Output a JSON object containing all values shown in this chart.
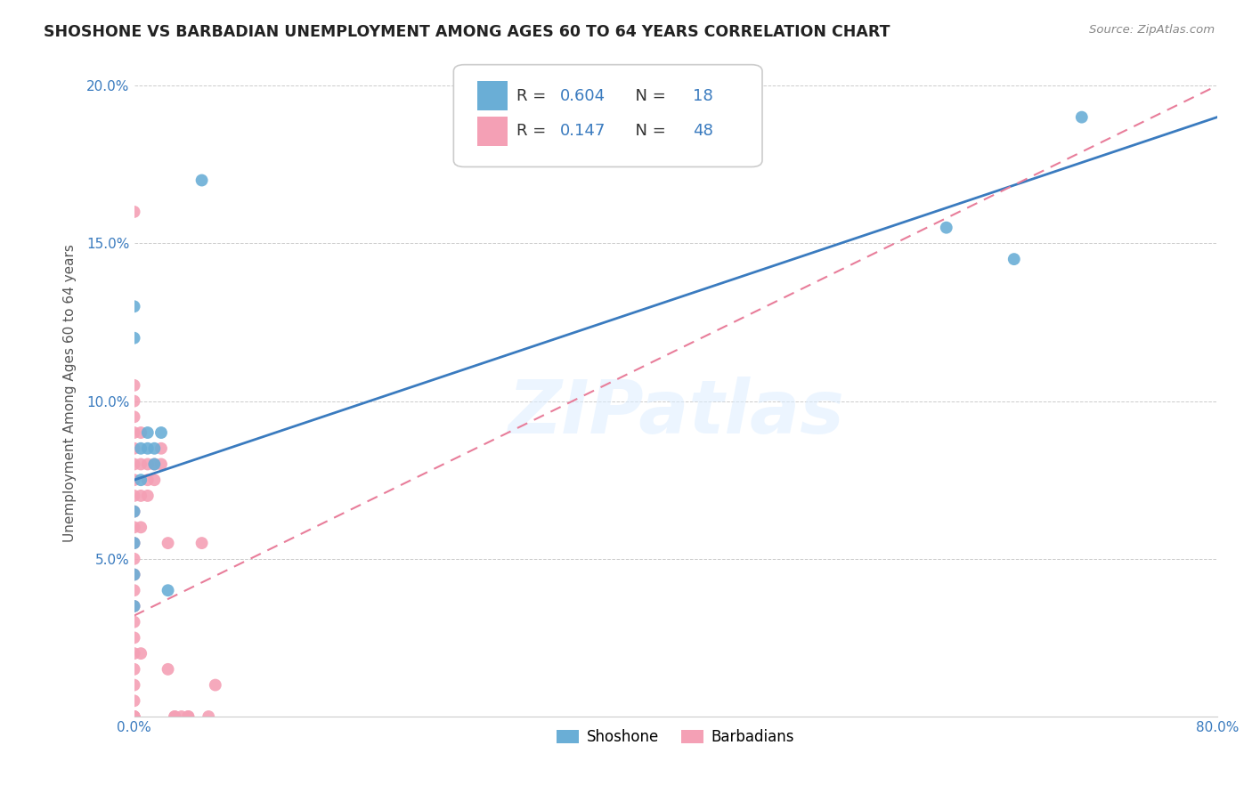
{
  "title": "SHOSHONE VS BARBADIAN UNEMPLOYMENT AMONG AGES 60 TO 64 YEARS CORRELATION CHART",
  "source": "Source: ZipAtlas.com",
  "ylabel": "Unemployment Among Ages 60 to 64 years",
  "xlim": [
    0.0,
    0.8
  ],
  "ylim": [
    0.0,
    0.205
  ],
  "xticks": [
    0.0,
    0.1,
    0.2,
    0.3,
    0.4,
    0.5,
    0.6,
    0.7,
    0.8
  ],
  "xticklabels": [
    "0.0%",
    "",
    "",
    "",
    "",
    "",
    "",
    "",
    "80.0%"
  ],
  "yticks": [
    0.0,
    0.05,
    0.1,
    0.15,
    0.2
  ],
  "yticklabels": [
    "",
    "5.0%",
    "10.0%",
    "15.0%",
    "20.0%"
  ],
  "shoshone_color": "#6aaed6",
  "barbadian_color": "#f4a0b5",
  "shoshone_line_color": "#3a7bbf",
  "barbadian_line_color": "#e87d9a",
  "legend_R_shoshone": "0.604",
  "legend_N_shoshone": "18",
  "legend_R_barbadian": "0.147",
  "legend_N_barbadian": "48",
  "watermark": "ZIPatlas",
  "shoshone_x": [
    0.0,
    0.0,
    0.0,
    0.0,
    0.0,
    0.0,
    0.005,
    0.005,
    0.01,
    0.01,
    0.015,
    0.015,
    0.02,
    0.025,
    0.05,
    0.6,
    0.65,
    0.7
  ],
  "shoshone_y": [
    0.13,
    0.12,
    0.065,
    0.055,
    0.045,
    0.035,
    0.085,
    0.075,
    0.09,
    0.085,
    0.085,
    0.08,
    0.09,
    0.04,
    0.17,
    0.155,
    0.145,
    0.19
  ],
  "barbadian_x": [
    0.0,
    0.0,
    0.0,
    0.0,
    0.0,
    0.0,
    0.0,
    0.0,
    0.0,
    0.0,
    0.0,
    0.0,
    0.0,
    0.0,
    0.0,
    0.0,
    0.0,
    0.0,
    0.0,
    0.0,
    0.0,
    0.0,
    0.0,
    0.0,
    0.0,
    0.0,
    0.005,
    0.005,
    0.005,
    0.005,
    0.005,
    0.01,
    0.01,
    0.01,
    0.015,
    0.015,
    0.02,
    0.02,
    0.025,
    0.025,
    0.03,
    0.03,
    0.035,
    0.04,
    0.04,
    0.05,
    0.055,
    0.06
  ],
  "barbadian_y": [
    0.16,
    0.105,
    0.1,
    0.095,
    0.09,
    0.085,
    0.08,
    0.075,
    0.07,
    0.065,
    0.06,
    0.055,
    0.05,
    0.045,
    0.04,
    0.035,
    0.03,
    0.025,
    0.02,
    0.015,
    0.01,
    0.005,
    0.0,
    0.0,
    0.0,
    0.0,
    0.09,
    0.08,
    0.07,
    0.06,
    0.02,
    0.08,
    0.075,
    0.07,
    0.08,
    0.075,
    0.085,
    0.08,
    0.055,
    0.015,
    0.0,
    0.0,
    0.0,
    0.0,
    0.0,
    0.055,
    0.0,
    0.01
  ],
  "shoshone_line_x": [
    0.0,
    0.8
  ],
  "shoshone_line_y": [
    0.075,
    0.19
  ],
  "barbadian_line_x": [
    0.0,
    0.8
  ],
  "barbadian_line_y": [
    0.032,
    0.2
  ]
}
